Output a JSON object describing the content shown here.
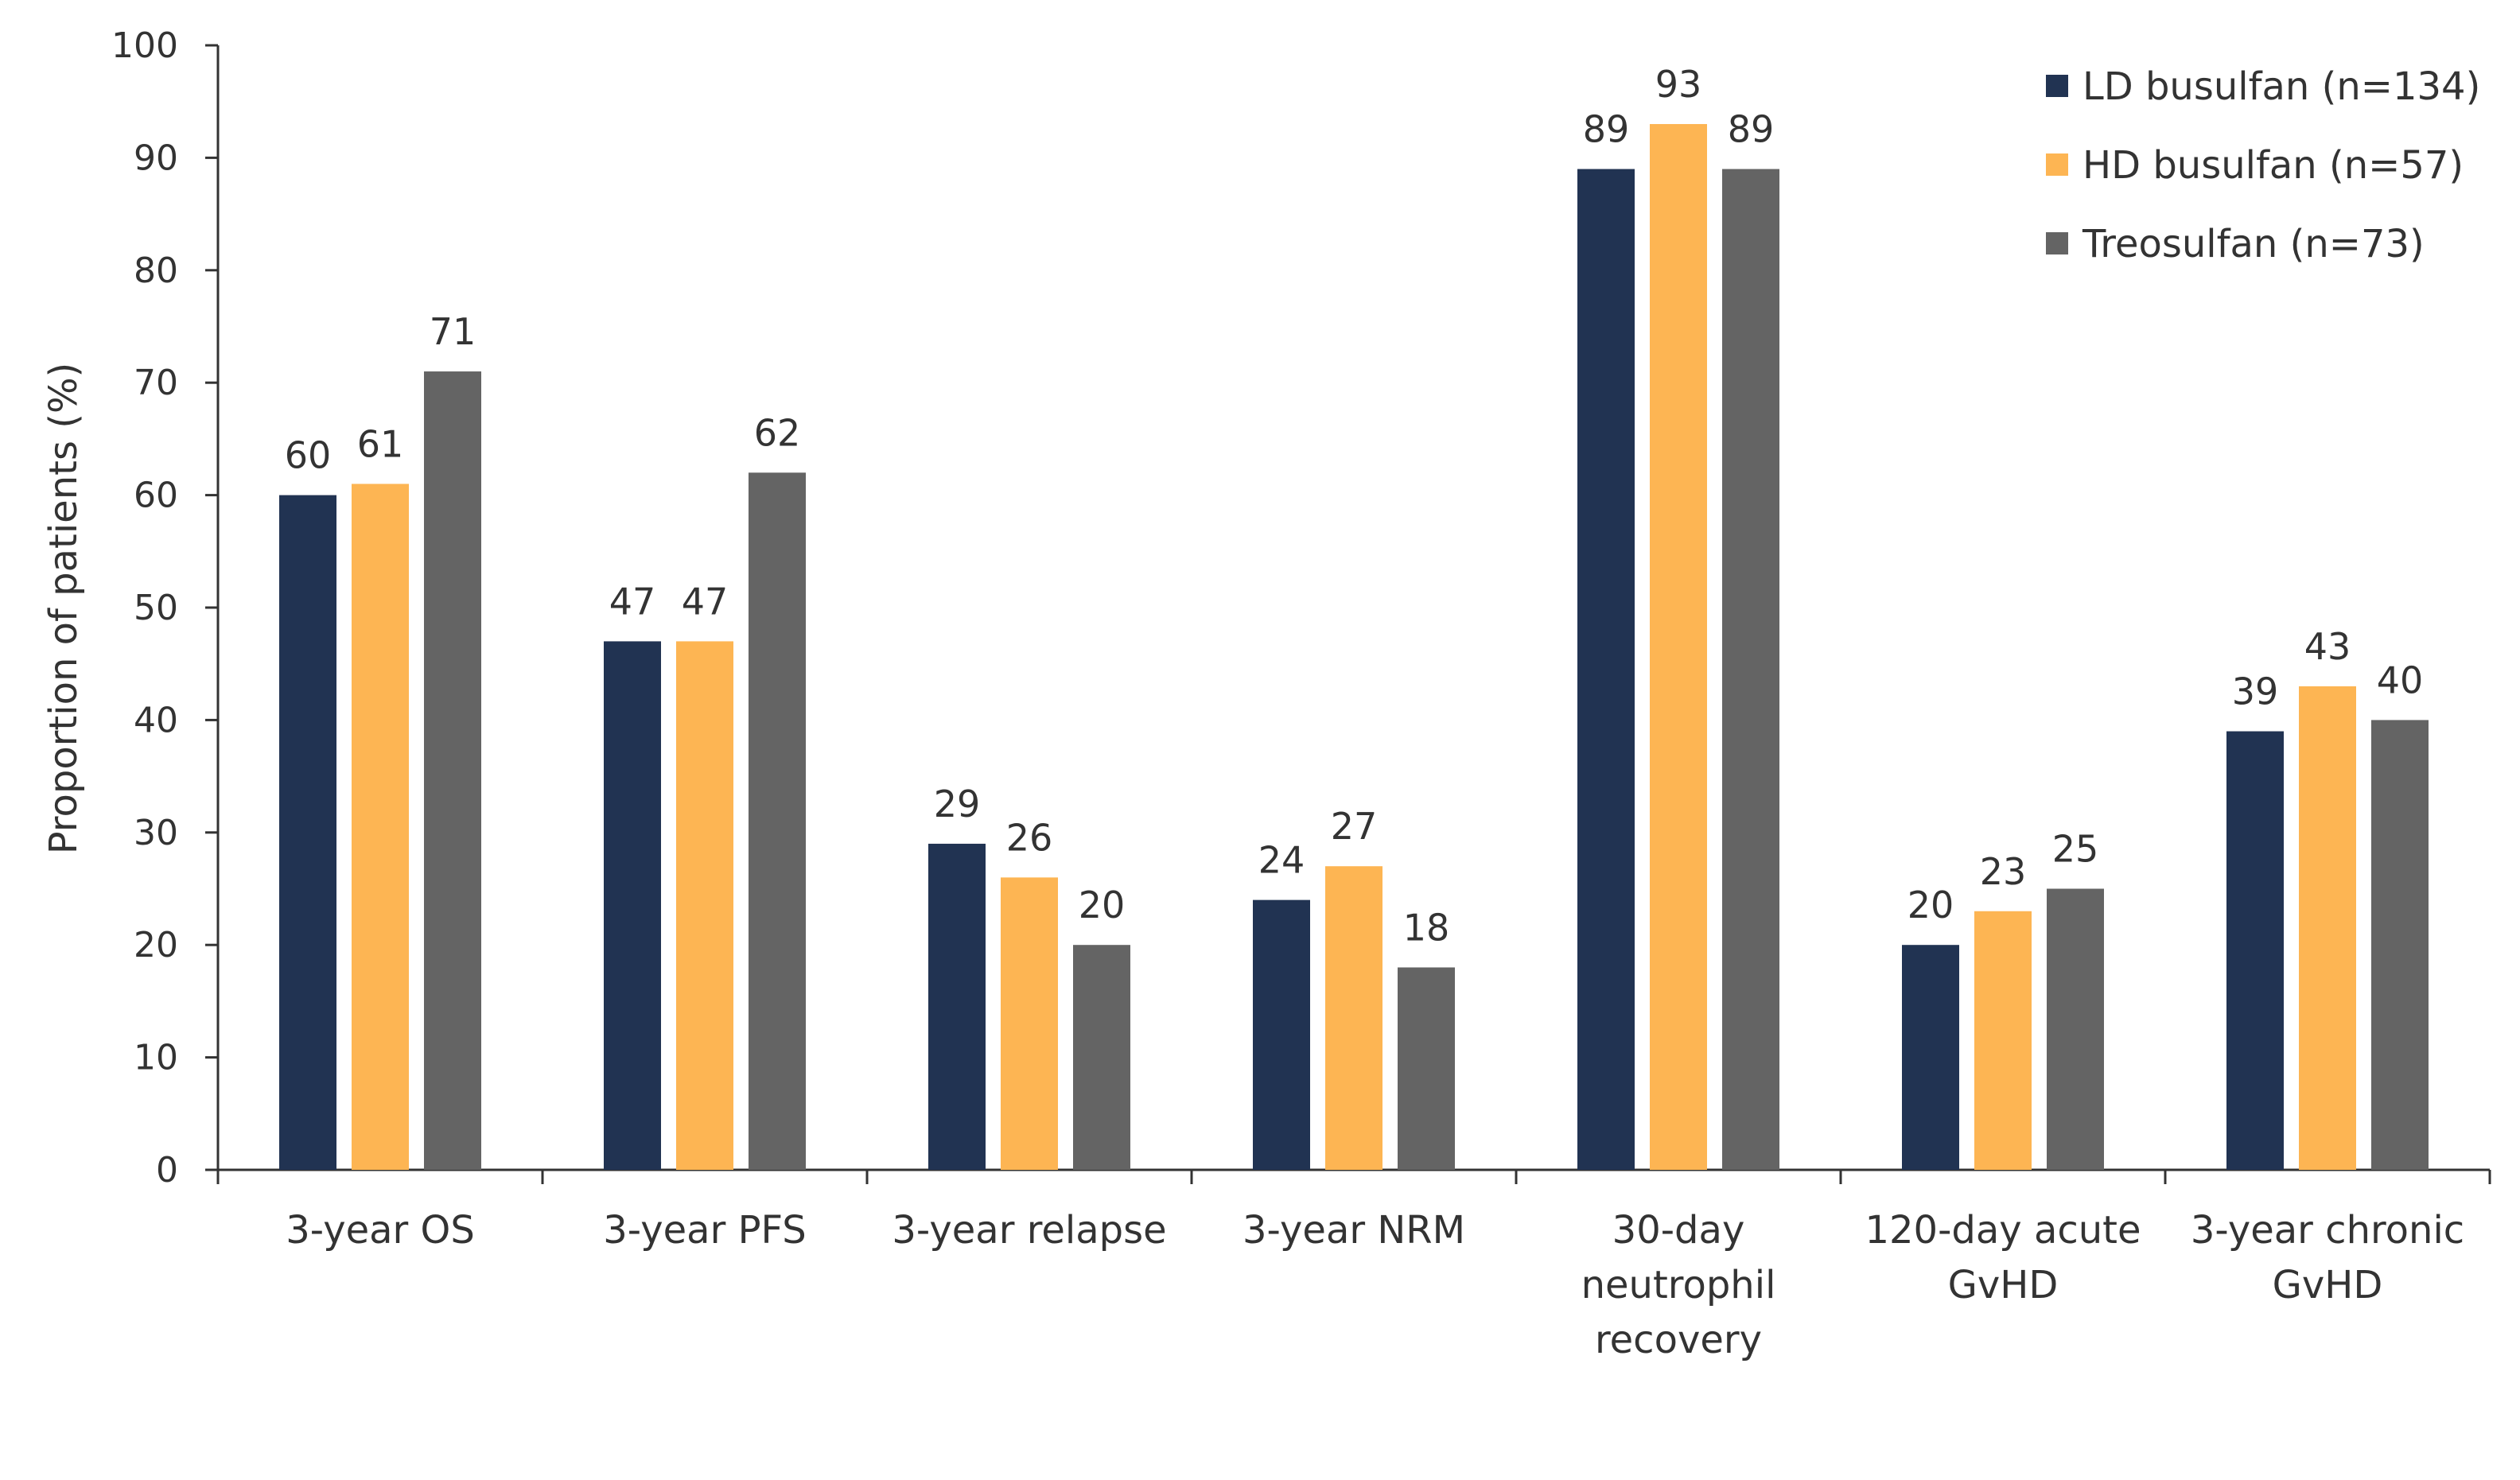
{
  "chart_data": {
    "type": "bar",
    "ylabel": "Proportion of patients (%)",
    "ylim": [
      0,
      100
    ],
    "y_ticks": [
      0,
      10,
      20,
      30,
      40,
      50,
      60,
      70,
      80,
      90,
      100
    ],
    "grid": false,
    "legend_position": "top-right",
    "categories": [
      [
        "3-year OS"
      ],
      [
        "3-year PFS"
      ],
      [
        "3-year relapse"
      ],
      [
        "3-year NRM"
      ],
      [
        "30-day",
        "neutrophil",
        "recovery"
      ],
      [
        "120-day acute",
        "GvHD"
      ],
      [
        "3-year chronic",
        "GvHD"
      ]
    ],
    "series": [
      {
        "name": "LD busulfan (n=134)",
        "color": "#213352",
        "values": [
          60,
          47,
          29,
          24,
          89,
          20,
          39
        ]
      },
      {
        "name": "HD busulfan (n=57)",
        "color": "#FDB553",
        "values": [
          61,
          47,
          26,
          27,
          93,
          23,
          43
        ]
      },
      {
        "name": "Treosulfan (n=73)",
        "color": "#646464",
        "values": [
          71,
          62,
          20,
          18,
          89,
          25,
          40
        ]
      }
    ]
  }
}
